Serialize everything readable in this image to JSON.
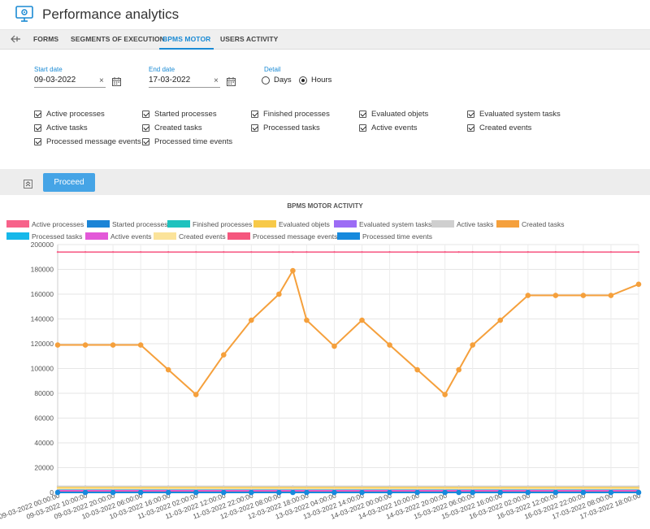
{
  "header": {
    "title": "Performance analytics",
    "icon": "monitor-gear-icon"
  },
  "tabs": [
    {
      "label": "FORMS",
      "active": false
    },
    {
      "label": "SEGMENTS OF EXECUTION",
      "active": false
    },
    {
      "label": "BPMS MOTOR",
      "active": true
    },
    {
      "label": "USERS ACTIVITY",
      "active": false
    }
  ],
  "form": {
    "start_date": {
      "label": "Start date",
      "value": "09-03-2022",
      "clear": "×"
    },
    "end_date": {
      "label": "End date",
      "value": "17-03-2022",
      "clear": "×"
    },
    "detail": {
      "label": "Detail",
      "options": [
        "Days",
        "Hours"
      ],
      "selected": "Hours"
    }
  },
  "checkboxes": [
    "Active processes",
    "Started processes",
    "Finished processes",
    "Evaluated objets",
    "Evaluated system tasks",
    "Active tasks",
    "Created tasks",
    "Processed tasks",
    "Active events",
    "Created events",
    "Processed message events",
    "Processed time events"
  ],
  "actions": {
    "proceed_label": "Proceed"
  },
  "chart_data": {
    "type": "line",
    "title": "BPMS MOTOR ACTIVITY",
    "ylim": [
      0,
      200000
    ],
    "yticks": [
      "200000",
      "180000",
      "160000",
      "140000",
      "120000",
      "100000",
      "80000",
      "60000",
      "40000",
      "20000",
      "0"
    ],
    "categories": [
      "09-03-2022 00:00:00",
      "09-03-2022 10:00:00",
      "09-03-2022 20:00:00",
      "10-03-2022 06:00:00",
      "10-03-2022 16:00:00",
      "11-03-2022 02:00:00",
      "11-03-2022 12:00:00",
      "11-03-2022 22:00:00",
      "12-03-2022 08:00:00",
      "12-03-2022 18:00:00",
      "13-03-2022 04:00:00",
      "13-03-2022 14:00:00",
      "14-03-2022 00:00:00",
      "14-03-2022 10:00:00",
      "14-03-2022 20:00:00",
      "15-03-2022 06:00:00",
      "15-03-2022 16:00:00",
      "16-03-2022 02:00:00",
      "16-03-2022 12:00:00",
      "16-03-2022 22:00:00",
      "17-03-2022 08:00:00",
      "17-03-2022 18:00:00"
    ],
    "x": [
      0,
      1,
      2,
      3,
      4,
      5,
      6,
      7,
      8,
      8.5,
      9,
      10,
      11,
      12,
      13,
      14,
      14.5,
      15,
      16,
      17,
      18,
      19,
      20,
      21
    ],
    "legend_position": "top",
    "series": [
      {
        "name": "Active processes",
        "color": "#f7628a",
        "marker": false,
        "values": [
          194000,
          194000,
          194000,
          194000,
          194000,
          194000,
          194000,
          194000,
          194000,
          194000,
          194000,
          194000,
          194000,
          194000,
          194000,
          194000,
          194000,
          194000,
          194000,
          194000,
          194000,
          194000,
          194000,
          194000
        ]
      },
      {
        "name": "Started processes",
        "color": "#1b84d6",
        "marker": false,
        "values": [
          1000,
          1000,
          1000,
          1000,
          1000,
          1000,
          1000,
          1000,
          1000,
          1000,
          1000,
          1000,
          1000,
          1000,
          1000,
          1000,
          1000,
          1000,
          1000,
          1000,
          1000,
          1000,
          1000,
          1000
        ]
      },
      {
        "name": "Finished processes",
        "color": "#1ec2be",
        "marker": false,
        "values": [
          1000,
          1000,
          1000,
          1000,
          1000,
          1000,
          1000,
          1000,
          1000,
          1000,
          1000,
          1000,
          1000,
          1000,
          1000,
          1000,
          1000,
          1000,
          1000,
          1000,
          1000,
          1000,
          1000,
          1000
        ]
      },
      {
        "name": "Evaluated objets",
        "color": "#f7c948",
        "marker": false,
        "values": [
          4000,
          4000,
          4000,
          4000,
          4000,
          4000,
          4000,
          4000,
          4000,
          4000,
          4000,
          4000,
          4000,
          4000,
          4000,
          4000,
          4000,
          4000,
          4000,
          4000,
          4000,
          4000,
          4000,
          4000
        ]
      },
      {
        "name": "Evaluated system tasks",
        "color": "#9c6cf5",
        "marker": false,
        "values": [
          1500,
          1500,
          1500,
          1500,
          1500,
          1500,
          1500,
          1500,
          1500,
          1500,
          1500,
          1500,
          1500,
          1500,
          1500,
          1500,
          1500,
          1500,
          1500,
          1500,
          1500,
          1500,
          1500,
          1500
        ]
      },
      {
        "name": "Active tasks",
        "color": "#cfcfcf",
        "marker": false,
        "values": [
          5000,
          5000,
          5000,
          5000,
          5000,
          5000,
          5000,
          5000,
          5000,
          5000,
          5000,
          5000,
          5000,
          5000,
          5000,
          5000,
          5000,
          5000,
          5000,
          5000,
          5000,
          5000,
          5000,
          5000
        ]
      },
      {
        "name": "Created tasks",
        "color": "#f5a03c",
        "marker": true,
        "values": [
          119000,
          119000,
          119000,
          119000,
          99000,
          79000,
          111000,
          139000,
          160000,
          179000,
          139000,
          118000,
          139000,
          119000,
          99000,
          79000,
          99000,
          119000,
          139000,
          159000,
          159000,
          159000,
          159000,
          168000
        ]
      },
      {
        "name": "Processed tasks",
        "color": "#16b8ea",
        "marker": false,
        "values": [
          2000,
          2000,
          2000,
          2000,
          2000,
          2000,
          2000,
          2000,
          2000,
          2000,
          2000,
          2000,
          2000,
          2000,
          2000,
          2000,
          2000,
          2000,
          2000,
          2000,
          2000,
          2000,
          2000,
          2000
        ]
      },
      {
        "name": "Active events",
        "color": "#e358d8",
        "marker": false,
        "values": [
          1500,
          1500,
          1500,
          1500,
          1500,
          1500,
          1500,
          1500,
          1500,
          1500,
          1500,
          1500,
          1500,
          1500,
          1500,
          1500,
          1500,
          1500,
          1500,
          1500,
          1500,
          1500,
          1500,
          1500
        ]
      },
      {
        "name": "Created events",
        "color": "#fbe39a",
        "marker": false,
        "values": [
          3000,
          3000,
          3000,
          3000,
          3000,
          3000,
          3000,
          3000,
          3000,
          3000,
          3000,
          3000,
          3000,
          3000,
          3000,
          3000,
          3000,
          3000,
          3000,
          3000,
          3000,
          3000,
          3000,
          3000
        ]
      },
      {
        "name": "Processed message events",
        "color": "#f5577e",
        "marker": false,
        "values": [
          500,
          500,
          500,
          500,
          500,
          500,
          500,
          500,
          500,
          500,
          500,
          500,
          500,
          500,
          500,
          500,
          500,
          500,
          500,
          500,
          500,
          500,
          500,
          500
        ]
      },
      {
        "name": "Processed time events",
        "color": "#1689dd",
        "marker": true,
        "values": [
          0,
          0,
          0,
          0,
          0,
          0,
          0,
          0,
          0,
          0,
          0,
          0,
          0,
          0,
          0,
          0,
          0,
          0,
          0,
          0,
          0,
          0,
          0,
          0
        ]
      }
    ]
  }
}
